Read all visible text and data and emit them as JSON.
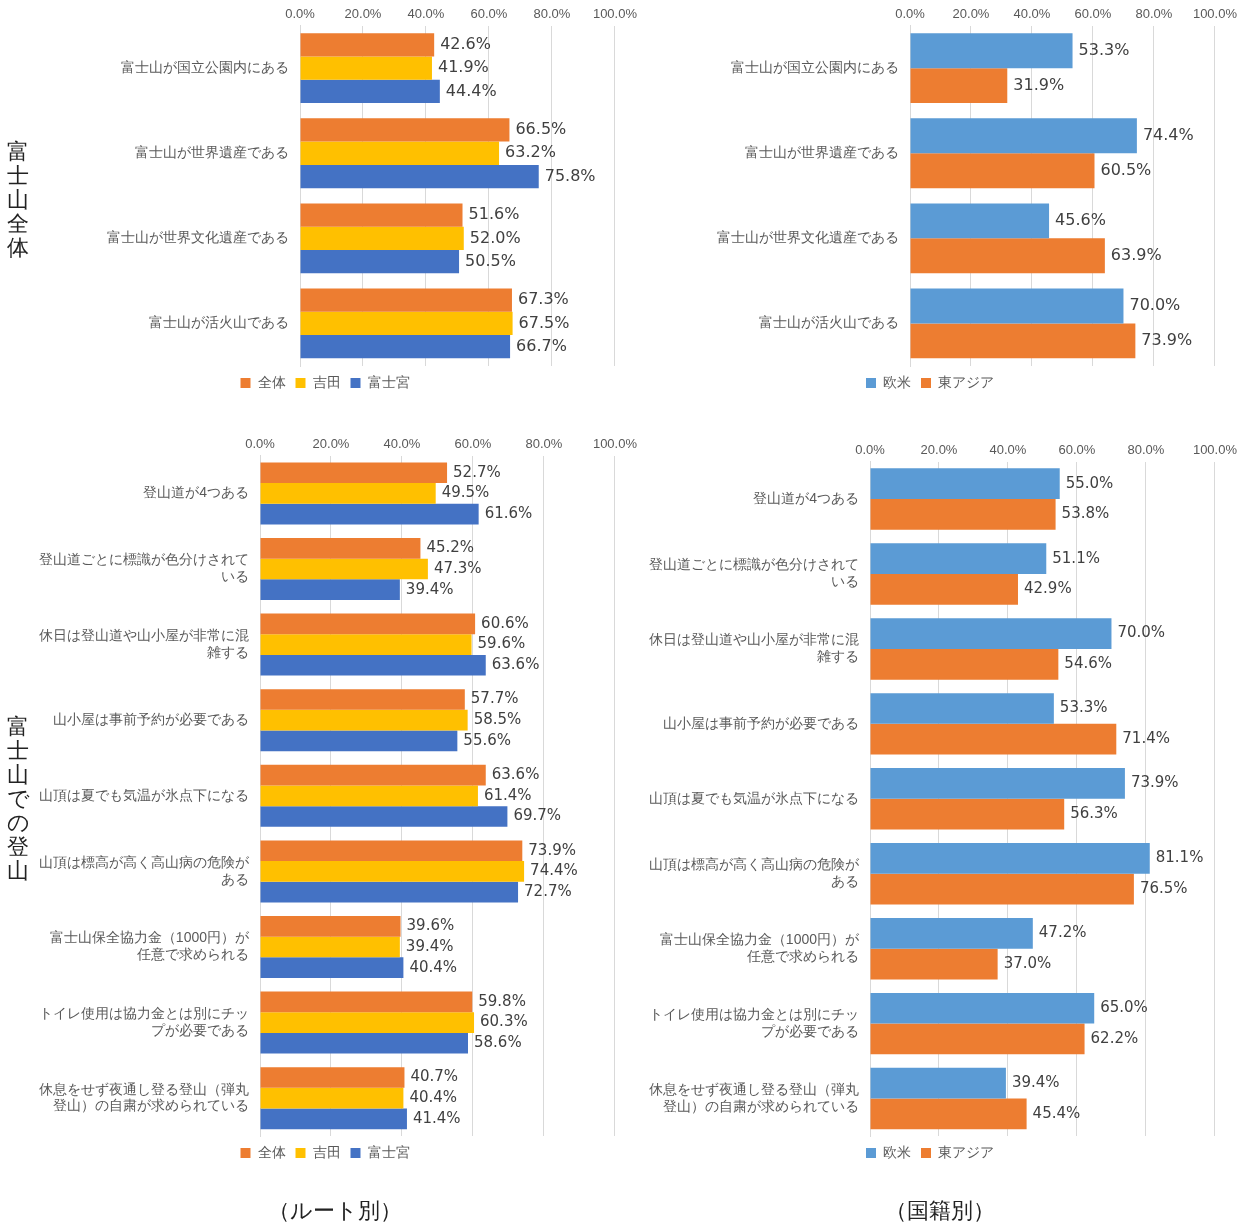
{
  "chart_data": [
    {
      "type": "bar",
      "orientation": "horizontal",
      "ylabel": "富士山全体",
      "categories": [
        "富士山が国立公園内にある",
        "富士山が世界遺産である",
        "富士山が世界文化遺産である",
        "富士山が活火山である"
      ],
      "series": [
        {
          "name": "全体",
          "color": "#ed7d31",
          "values": [
            42.6,
            66.5,
            51.6,
            67.3
          ],
          "value_labels": [
            "42.6%",
            "66.5%",
            "51.6%",
            "67.3%"
          ]
        },
        {
          "name": "吉田",
          "color": "#ffc000",
          "values": [
            41.9,
            63.2,
            52.0,
            67.5
          ],
          "value_labels": [
            "41.9%",
            "63.2%",
            "52.0%",
            "67.5%"
          ]
        },
        {
          "name": "富士宮",
          "color": "#4472c4",
          "values": [
            44.4,
            75.8,
            50.5,
            66.7
          ],
          "value_labels": [
            "44.4%",
            "75.8%",
            "50.5%",
            "66.7%"
          ]
        }
      ],
      "xlim": [
        0,
        100
      ],
      "xticks": [
        {
          "value": 0,
          "label": "0.0%"
        },
        {
          "value": 20,
          "label": "20.0%"
        },
        {
          "value": 40,
          "label": "40.0%"
        },
        {
          "value": 60,
          "label": "60.0%"
        },
        {
          "value": 80,
          "label": "80.0%"
        },
        {
          "value": 100,
          "label": "100.0%"
        }
      ],
      "grid": "x",
      "legend": "bottom"
    },
    {
      "type": "bar",
      "orientation": "horizontal",
      "categories": [
        "富士山が国立公園内にある",
        "富士山が世界遺産である",
        "富士山が世界文化遺産である",
        "富士山が活火山である"
      ],
      "series": [
        {
          "name": "欧米",
          "color": "#5b9bd5",
          "values": [
            53.3,
            74.4,
            45.6,
            70.0
          ],
          "value_labels": [
            "53.3%",
            "74.4%",
            "45.6%",
            "70.0%"
          ]
        },
        {
          "name": "東アジア",
          "color": "#ed7d31",
          "values": [
            31.9,
            60.5,
            63.9,
            73.9
          ],
          "value_labels": [
            "31.9%",
            "60.5%",
            "63.9%",
            "73.9%"
          ]
        }
      ],
      "xlim": [
        0,
        100
      ],
      "xticks": [
        {
          "value": 0,
          "label": "0.0%"
        },
        {
          "value": 20,
          "label": "20.0%"
        },
        {
          "value": 40,
          "label": "40.0%"
        },
        {
          "value": 60,
          "label": "60.0%"
        },
        {
          "value": 80,
          "label": "80.0%"
        },
        {
          "value": 100,
          "label": "100.0%"
        }
      ],
      "grid": "x",
      "legend": "bottom"
    },
    {
      "type": "bar",
      "orientation": "horizontal",
      "ylabel": "富士山での登山",
      "xlabel": "（ルート別）",
      "categories": [
        "登山道が4つある",
        "登山道ごとに標識が色分けされている",
        "休日は登山道や山小屋が非常に混雑する",
        "山小屋は事前予約が必要である",
        "山頂は夏でも気温が氷点下になる",
        "山頂は標高が高く高山病の危険がある",
        "富士山保全協力金（1000円）が任意で求められる",
        "トイレ使用は協力金とは別にチップが必要である",
        "休息をせず夜通し登る登山（弾丸登山）の自粛が求められている"
      ],
      "series": [
        {
          "name": "全体",
          "color": "#ed7d31",
          "values": [
            52.7,
            45.2,
            60.6,
            57.7,
            63.6,
            73.9,
            39.6,
            59.8,
            40.7
          ],
          "value_labels": [
            "52.7%",
            "45.2%",
            "60.6%",
            "57.7%",
            "63.6%",
            "73.9%",
            "39.6%",
            "59.8%",
            "40.7%"
          ]
        },
        {
          "name": "吉田",
          "color": "#ffc000",
          "values": [
            49.5,
            47.3,
            59.6,
            58.5,
            61.4,
            74.4,
            39.4,
            60.3,
            40.4
          ],
          "value_labels": [
            "49.5%",
            "47.3%",
            "59.6%",
            "58.5%",
            "61.4%",
            "74.4%",
            "39.4%",
            "60.3%",
            "40.4%"
          ]
        },
        {
          "name": "富士宮",
          "color": "#4472c4",
          "values": [
            61.6,
            39.4,
            63.6,
            55.6,
            69.7,
            72.7,
            40.4,
            58.6,
            41.4
          ],
          "value_labels": [
            "61.6%",
            "39.4%",
            "63.6%",
            "55.6%",
            "69.7%",
            "72.7%",
            "40.4%",
            "58.6%",
            "41.4%"
          ]
        }
      ],
      "xlim": [
        0,
        100
      ],
      "xticks": [
        {
          "value": 0,
          "label": "0.0%"
        },
        {
          "value": 20,
          "label": "20.0%"
        },
        {
          "value": 40,
          "label": "40.0%"
        },
        {
          "value": 60,
          "label": "60.0%"
        },
        {
          "value": 80,
          "label": "80.0%"
        },
        {
          "value": 100,
          "label": "100.0%"
        }
      ],
      "grid": "x",
      "legend": "bottom"
    },
    {
      "type": "bar",
      "orientation": "horizontal",
      "xlabel": "（国籍別）",
      "categories": [
        "登山道が4つある",
        "登山道ごとに標識が色分けされている",
        "休日は登山道や山小屋が非常に混雑する",
        "山小屋は事前予約が必要である",
        "山頂は夏でも気温が氷点下になる",
        "山頂は標高が高く高山病の危険がある",
        "富士山保全協力金（1000円）が任意で求められる",
        "トイレ使用は協力金とは別にチップが必要である",
        "休息をせず夜通し登る登山（弾丸登山）の自粛が求められている"
      ],
      "series": [
        {
          "name": "欧米",
          "color": "#5b9bd5",
          "values": [
            55.0,
            51.1,
            70.0,
            53.3,
            73.9,
            81.1,
            47.2,
            65.0,
            39.4
          ],
          "value_labels": [
            "55.0%",
            "51.1%",
            "70.0%",
            "53.3%",
            "73.9%",
            "81.1%",
            "47.2%",
            "65.0%",
            "39.4%"
          ]
        },
        {
          "name": "東アジア",
          "color": "#ed7d31",
          "values": [
            53.8,
            42.9,
            54.6,
            71.4,
            56.3,
            76.5,
            37.0,
            62.2,
            45.4
          ],
          "value_labels": [
            "53.8%",
            "42.9%",
            "54.6%",
            "71.4%",
            "56.3%",
            "76.5%",
            "37.0%",
            "62.2%",
            "45.4%"
          ]
        }
      ],
      "xlim": [
        0,
        100
      ],
      "xticks": [
        {
          "value": 0,
          "label": "0.0%"
        },
        {
          "value": 20,
          "label": "20.0%"
        },
        {
          "value": 40,
          "label": "40.0%"
        },
        {
          "value": 60,
          "label": "60.0%"
        },
        {
          "value": 80,
          "label": "80.0%"
        },
        {
          "value": 100,
          "label": "100.0%"
        }
      ],
      "grid": "x",
      "legend": "bottom"
    }
  ]
}
